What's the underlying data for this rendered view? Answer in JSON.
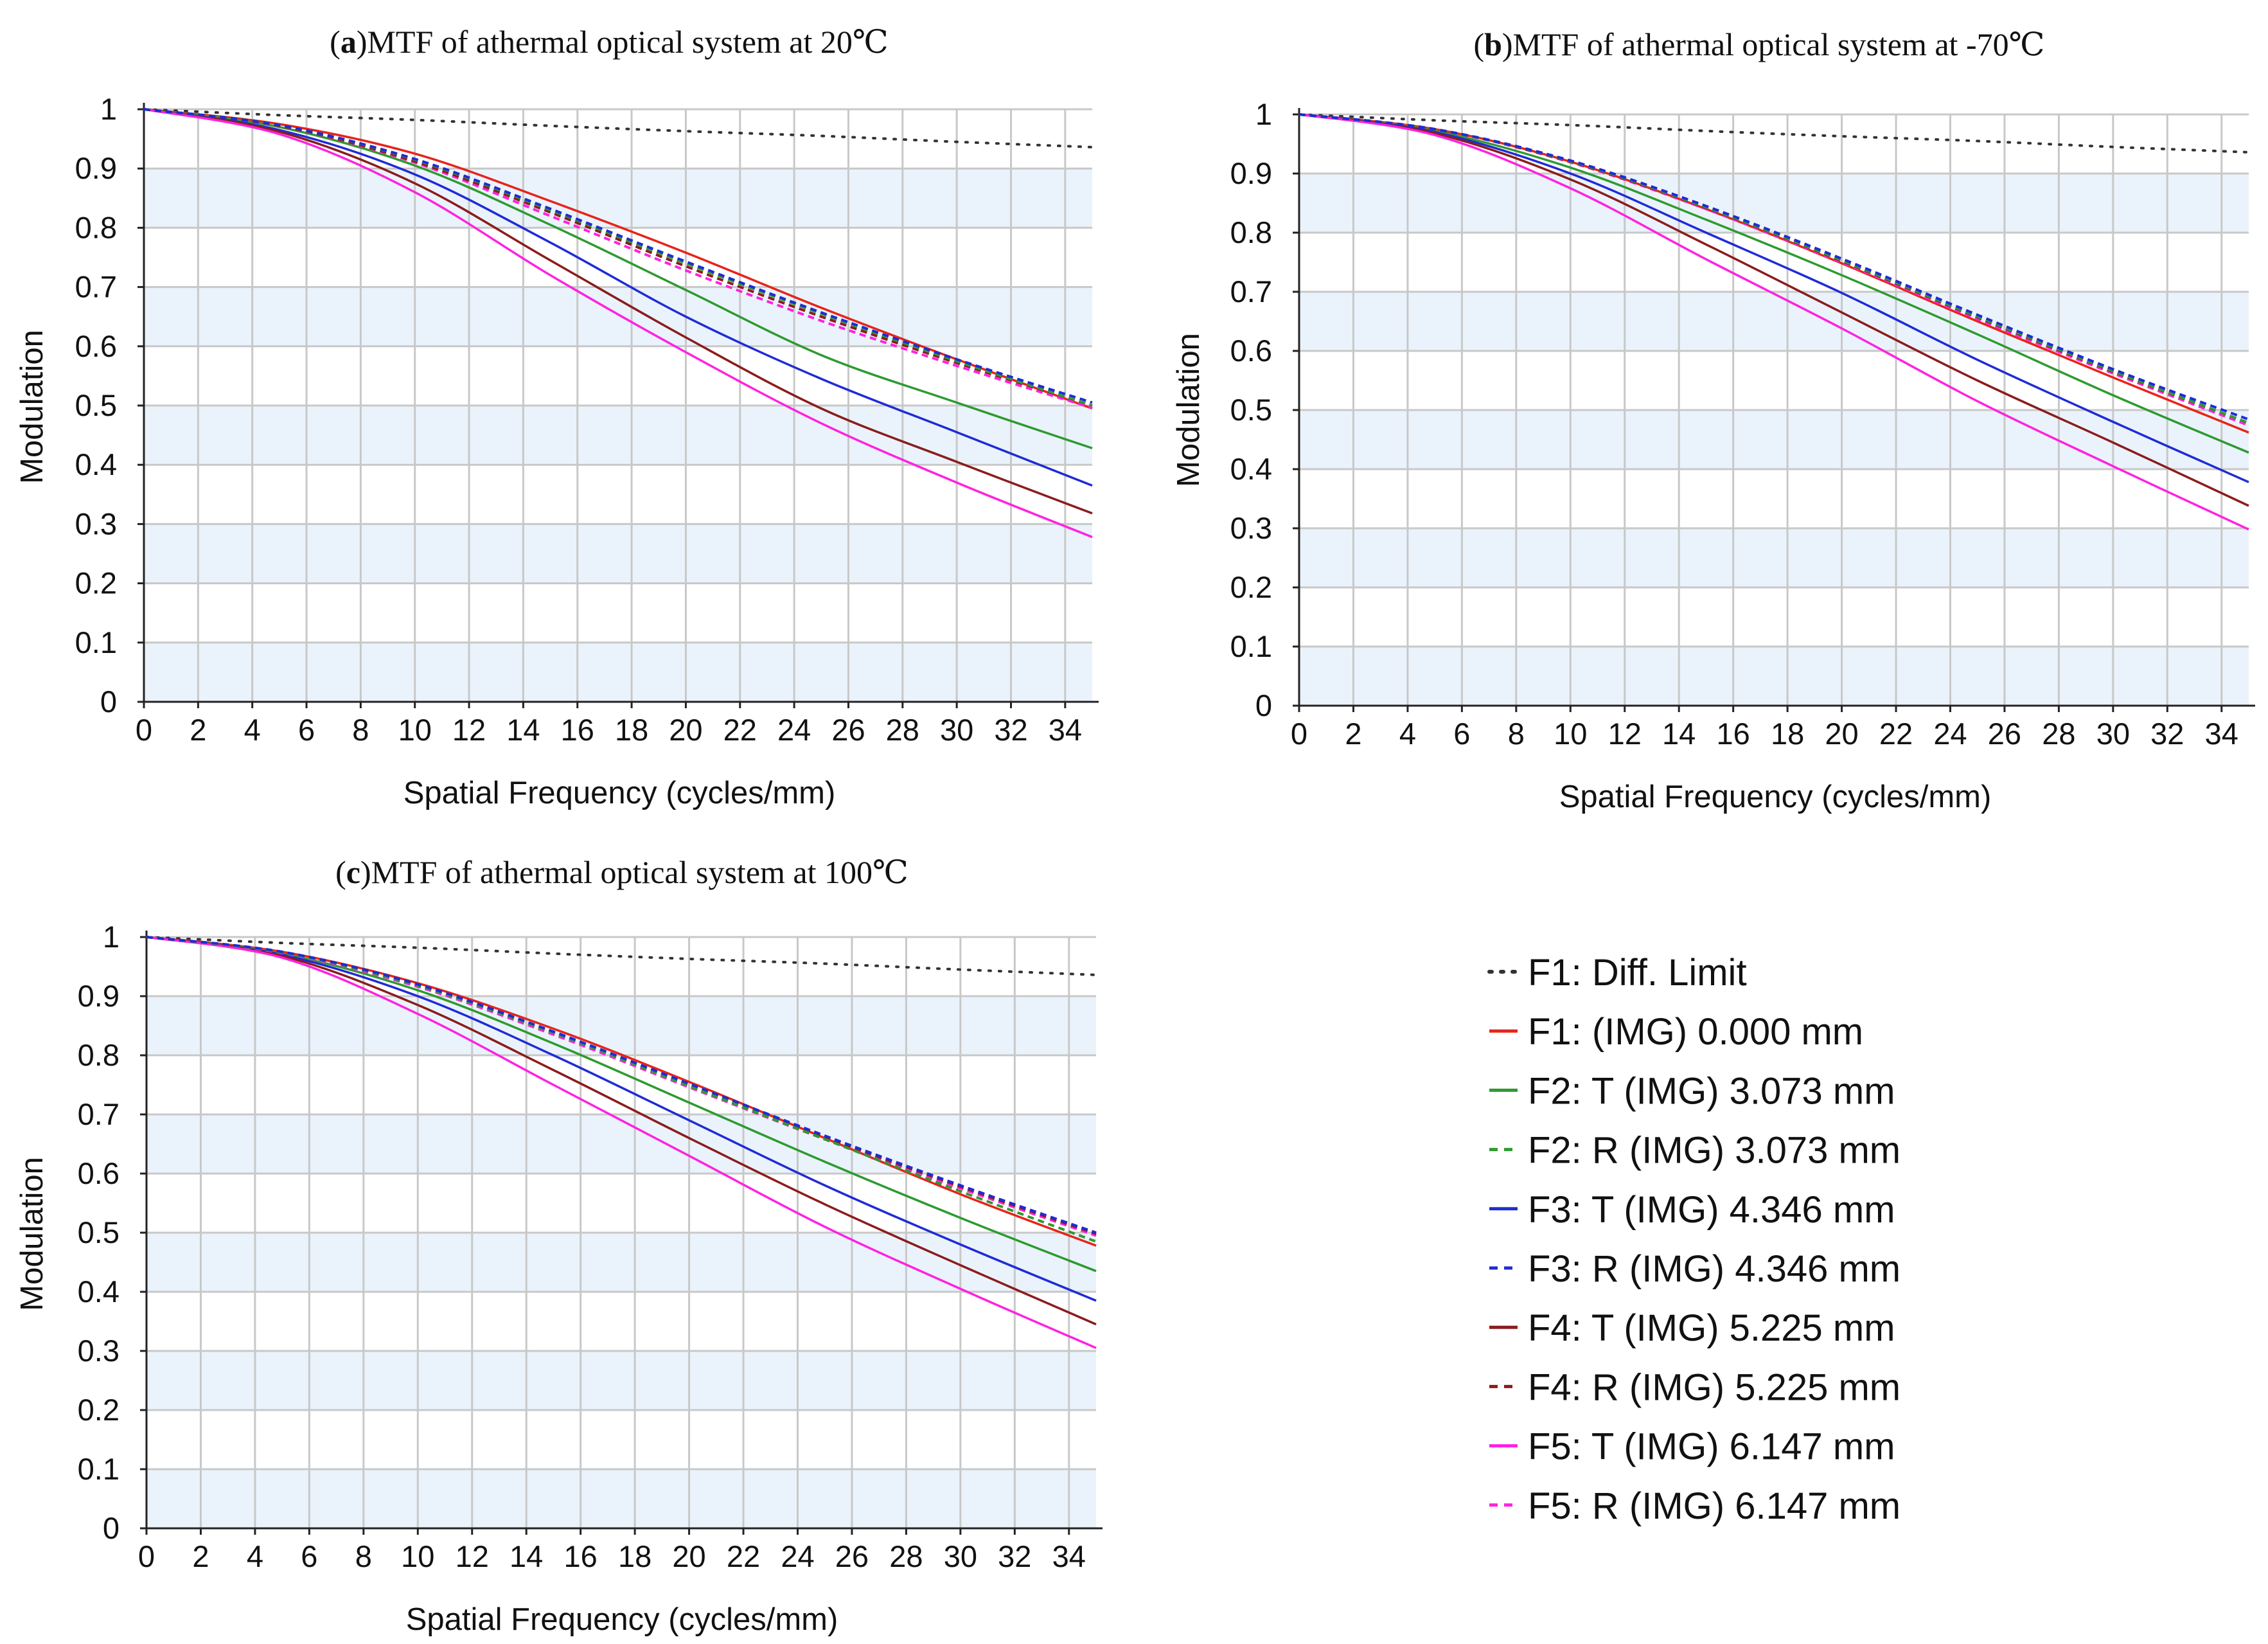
{
  "chart_data": [
    {
      "id": "a",
      "type": "line",
      "title_prefix": "(",
      "title_letter": "a",
      "title_rest": ")MTF of athermal optical system at 20℃",
      "xlabel": "Spatial Frequency (cycles/mm)",
      "ylabel": "Modulation",
      "xlim": [
        0,
        35
      ],
      "ylim": [
        0,
        1
      ],
      "grid": true,
      "xticks": [
        "0",
        "2",
        "4",
        "6",
        "8",
        "10",
        "12",
        "14",
        "16",
        "18",
        "20",
        "22",
        "24",
        "26",
        "28",
        "30",
        "32",
        "34"
      ],
      "yticks": [
        "0",
        "0.1",
        "0.2",
        "0.3",
        "0.4",
        "0.5",
        "0.6",
        "0.7",
        "0.8",
        "0.9",
        "1"
      ],
      "x": [
        0,
        5,
        10,
        15,
        20,
        25,
        30,
        35
      ],
      "series": [
        {
          "key": "diff",
          "values": [
            1.0,
            0.99,
            0.982,
            0.972,
            0.963,
            0.955,
            0.945,
            0.936
          ]
        },
        {
          "key": "f1",
          "values": [
            1.0,
            0.975,
            0.925,
            0.845,
            0.758,
            0.665,
            0.578,
            0.495
          ]
        },
        {
          "key": "f2t",
          "values": [
            1.0,
            0.97,
            0.905,
            0.805,
            0.695,
            0.585,
            0.505,
            0.428
          ]
        },
        {
          "key": "f2r",
          "values": [
            1.0,
            0.973,
            0.915,
            0.83,
            0.74,
            0.655,
            0.575,
            0.5
          ]
        },
        {
          "key": "f3t",
          "values": [
            1.0,
            0.965,
            0.89,
            0.775,
            0.65,
            0.545,
            0.455,
            0.365
          ]
        },
        {
          "key": "f3r",
          "values": [
            1.0,
            0.973,
            0.916,
            0.832,
            0.743,
            0.657,
            0.578,
            0.505
          ]
        },
        {
          "key": "f4t",
          "values": [
            1.0,
            0.962,
            0.875,
            0.745,
            0.615,
            0.495,
            0.405,
            0.318
          ]
        },
        {
          "key": "f4r",
          "values": [
            1.0,
            0.972,
            0.912,
            0.826,
            0.735,
            0.65,
            0.572,
            0.5
          ]
        },
        {
          "key": "f5t",
          "values": [
            1.0,
            0.958,
            0.86,
            0.72,
            0.59,
            0.47,
            0.37,
            0.278
          ]
        },
        {
          "key": "f5r",
          "values": [
            1.0,
            0.972,
            0.91,
            0.82,
            0.728,
            0.643,
            0.567,
            0.496
          ]
        }
      ]
    },
    {
      "id": "b",
      "type": "line",
      "title_prefix": "(",
      "title_letter": "b",
      "title_rest": ")MTF of athermal optical system at -70℃",
      "xlabel": "Spatial Frequency (cycles/mm)",
      "ylabel": "Modulation",
      "xlim": [
        0,
        35
      ],
      "ylim": [
        0,
        1
      ],
      "grid": true,
      "xticks": [
        "0",
        "2",
        "4",
        "6",
        "8",
        "10",
        "12",
        "14",
        "16",
        "18",
        "20",
        "22",
        "24",
        "26",
        "28",
        "30",
        "32",
        "34"
      ],
      "yticks": [
        "0",
        "0.1",
        "0.2",
        "0.3",
        "0.4",
        "0.5",
        "0.6",
        "0.7",
        "0.8",
        "0.9",
        "1"
      ],
      "x": [
        0,
        5,
        10,
        15,
        20,
        25,
        30,
        35
      ],
      "series": [
        {
          "key": "diff",
          "values": [
            1.0,
            0.99,
            0.982,
            0.972,
            0.963,
            0.955,
            0.945,
            0.936
          ]
        },
        {
          "key": "f1",
          "values": [
            1.0,
            0.975,
            0.92,
            0.84,
            0.748,
            0.65,
            0.555,
            0.462
          ]
        },
        {
          "key": "f2t",
          "values": [
            1.0,
            0.972,
            0.91,
            0.822,
            0.728,
            0.628,
            0.525,
            0.428
          ]
        },
        {
          "key": "f2r",
          "values": [
            1.0,
            0.975,
            0.921,
            0.843,
            0.753,
            0.658,
            0.566,
            0.478
          ]
        },
        {
          "key": "f3t",
          "values": [
            1.0,
            0.97,
            0.9,
            0.8,
            0.698,
            0.585,
            0.48,
            0.378
          ]
        },
        {
          "key": "f3r",
          "values": [
            1.0,
            0.975,
            0.922,
            0.845,
            0.756,
            0.661,
            0.569,
            0.484
          ]
        },
        {
          "key": "f4t",
          "values": [
            1.0,
            0.968,
            0.89,
            0.78,
            0.665,
            0.55,
            0.445,
            0.338
          ]
        },
        {
          "key": "f4r",
          "values": [
            1.0,
            0.975,
            0.92,
            0.842,
            0.752,
            0.657,
            0.565,
            0.478
          ]
        },
        {
          "key": "f5t",
          "values": [
            1.0,
            0.965,
            0.875,
            0.755,
            0.638,
            0.515,
            0.405,
            0.298
          ]
        },
        {
          "key": "f5r",
          "values": [
            1.0,
            0.975,
            0.919,
            0.84,
            0.75,
            0.654,
            0.562,
            0.474
          ]
        }
      ]
    },
    {
      "id": "c",
      "type": "line",
      "title_prefix": "(",
      "title_letter": "c",
      "title_rest": ")MTF of athermal optical system at 100℃",
      "xlabel": "Spatial Frequency (cycles/mm)",
      "ylabel": "Modulation",
      "xlim": [
        0,
        35
      ],
      "ylim": [
        0,
        1
      ],
      "grid": true,
      "xticks": [
        "0",
        "2",
        "4",
        "6",
        "8",
        "10",
        "12",
        "14",
        "16",
        "18",
        "20",
        "22",
        "24",
        "26",
        "28",
        "30",
        "32",
        "34"
      ],
      "yticks": [
        "0",
        "0.1",
        "0.2",
        "0.3",
        "0.4",
        "0.5",
        "0.6",
        "0.7",
        "0.8",
        "0.9",
        "1"
      ],
      "x": [
        0,
        5,
        10,
        15,
        20,
        25,
        30,
        35
      ],
      "series": [
        {
          "key": "diff",
          "values": [
            1.0,
            0.99,
            0.982,
            0.972,
            0.963,
            0.955,
            0.945,
            0.936
          ]
        },
        {
          "key": "f1",
          "values": [
            1.0,
            0.975,
            0.922,
            0.845,
            0.755,
            0.66,
            0.565,
            0.478
          ]
        },
        {
          "key": "f2t",
          "values": [
            1.0,
            0.972,
            0.91,
            0.82,
            0.72,
            0.62,
            0.525,
            0.435
          ]
        },
        {
          "key": "f2r",
          "values": [
            1.0,
            0.974,
            0.918,
            0.838,
            0.748,
            0.658,
            0.57,
            0.485
          ]
        },
        {
          "key": "f3t",
          "values": [
            1.0,
            0.97,
            0.9,
            0.8,
            0.69,
            0.58,
            0.48,
            0.385
          ]
        },
        {
          "key": "f3r",
          "values": [
            1.0,
            0.975,
            0.92,
            0.84,
            0.752,
            0.664,
            0.58,
            0.5
          ]
        },
        {
          "key": "f4t",
          "values": [
            1.0,
            0.968,
            0.885,
            0.775,
            0.66,
            0.548,
            0.445,
            0.345
          ]
        },
        {
          "key": "f4r",
          "values": [
            1.0,
            0.974,
            0.918,
            0.838,
            0.75,
            0.662,
            0.578,
            0.498
          ]
        },
        {
          "key": "f5t",
          "values": [
            1.0,
            0.965,
            0.87,
            0.75,
            0.63,
            0.51,
            0.405,
            0.305
          ]
        },
        {
          "key": "f5r",
          "values": [
            1.0,
            0.973,
            0.916,
            0.835,
            0.746,
            0.658,
            0.575,
            0.495
          ]
        }
      ]
    }
  ],
  "legend": {
    "items": [
      {
        "key": "diff",
        "label": "F1: Diff. Limit",
        "color": "#333333",
        "dashed": true
      },
      {
        "key": "f1",
        "label": "F1: (IMG) 0.000 mm",
        "color": "#e8231a",
        "dashed": false
      },
      {
        "key": "f2t",
        "label": "F2: T (IMG) 3.073 mm",
        "color": "#2e9a30",
        "dashed": false
      },
      {
        "key": "f2r",
        "label": "F2: R (IMG) 3.073 mm",
        "color": "#2e9a30",
        "dashed": true
      },
      {
        "key": "f3t",
        "label": "F3: T (IMG) 4.346 mm",
        "color": "#1f2bd6",
        "dashed": false
      },
      {
        "key": "f3r",
        "label": "F3: R (IMG) 4.346 mm",
        "color": "#1f2bd6",
        "dashed": true
      },
      {
        "key": "f4t",
        "label": "F4: T (IMG) 5.225 mm",
        "color": "#8b1c1c",
        "dashed": false
      },
      {
        "key": "f4r",
        "label": "F4: R (IMG) 5.225 mm",
        "color": "#8b1c1c",
        "dashed": true
      },
      {
        "key": "f5t",
        "label": "F5: T (IMG) 6.147 mm",
        "color": "#ff22e0",
        "dashed": false
      },
      {
        "key": "f5r",
        "label": "F5: R (IMG) 6.147 mm",
        "color": "#ff22e0",
        "dashed": true
      }
    ]
  },
  "colors": {
    "band": "#eaf3fb",
    "grid": "#c8c8c8",
    "axis": "#222222"
  }
}
